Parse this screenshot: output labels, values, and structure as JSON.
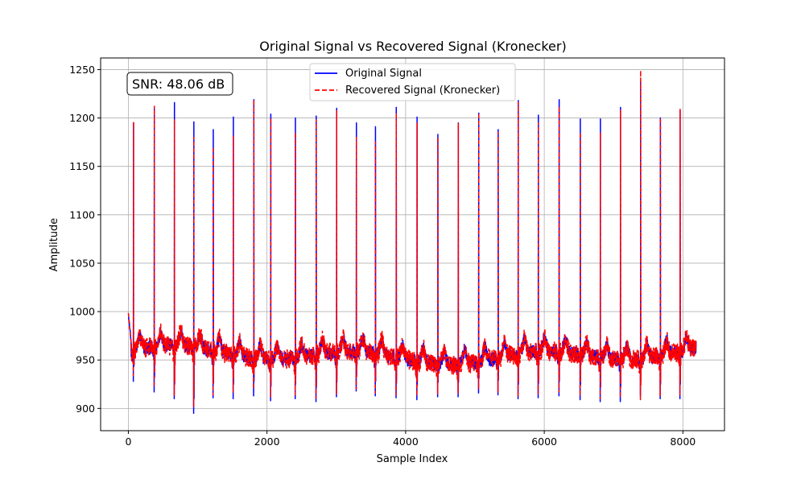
{
  "chart_data": {
    "type": "line",
    "title": "Original Signal vs Recovered Signal (Kronecker)",
    "xlabel": "Sample Index",
    "ylabel": "Amplitude",
    "xlim": [
      -400,
      8600
    ],
    "ylim": [
      877,
      1262
    ],
    "xticks": [
      0,
      2000,
      4000,
      6000,
      8000
    ],
    "yticks": [
      900,
      950,
      1000,
      1050,
      1100,
      1150,
      1200,
      1250
    ],
    "grid": true,
    "legend_position": "top-center",
    "annotation": "SNR: 48.06 dB",
    "n_samples": 8192,
    "baseline": 955,
    "series": [
      {
        "name": "Original Signal",
        "color": "#0000ff",
        "style": "solid"
      },
      {
        "name": "Recovered Signal (Kronecker)",
        "color": "#ff0000",
        "style": "dashed"
      }
    ],
    "peaks": [
      {
        "x": 75,
        "orig_max": 1195,
        "orig_min": 928,
        "rec_max": 1196,
        "rec_min": 934
      },
      {
        "x": 375,
        "orig_max": 1212,
        "orig_min": 917,
        "rec_max": 1212,
        "rec_min": 922
      },
      {
        "x": 665,
        "orig_max": 1216,
        "orig_min": 910,
        "rec_max": 1198,
        "rec_min": 913
      },
      {
        "x": 945,
        "orig_max": 1196,
        "orig_min": 895,
        "rec_max": 1180,
        "rec_min": 902
      },
      {
        "x": 1225,
        "orig_max": 1188,
        "orig_min": 911,
        "rec_max": 1170,
        "rec_min": 914
      },
      {
        "x": 1515,
        "orig_max": 1201,
        "orig_min": 910,
        "rec_max": 1182,
        "rec_min": 916
      },
      {
        "x": 1810,
        "orig_max": 1219,
        "orig_min": 913,
        "rec_max": 1219,
        "rec_min": 920
      },
      {
        "x": 2055,
        "orig_max": 1204,
        "orig_min": 908,
        "rec_max": 1200,
        "rec_min": 912
      },
      {
        "x": 2410,
        "orig_max": 1200,
        "orig_min": 910,
        "rec_max": 1185,
        "rec_min": 914
      },
      {
        "x": 2710,
        "orig_max": 1202,
        "orig_min": 907,
        "rec_max": 1198,
        "rec_min": 911
      },
      {
        "x": 3005,
        "orig_max": 1210,
        "orig_min": 912,
        "rec_max": 1208,
        "rec_min": 915
      },
      {
        "x": 3290,
        "orig_max": 1195,
        "orig_min": 918,
        "rec_max": 1180,
        "rec_min": 920
      },
      {
        "x": 3565,
        "orig_max": 1191,
        "orig_min": 913,
        "rec_max": 1175,
        "rec_min": 916
      },
      {
        "x": 3865,
        "orig_max": 1211,
        "orig_min": 911,
        "rec_max": 1205,
        "rec_min": 914
      },
      {
        "x": 4165,
        "orig_max": 1201,
        "orig_min": 909,
        "rec_max": 1195,
        "rec_min": 913
      },
      {
        "x": 4465,
        "orig_max": 1183,
        "orig_min": 912,
        "rec_max": 1180,
        "rec_min": 915
      },
      {
        "x": 4760,
        "orig_max": 1195,
        "orig_min": 912,
        "rec_max": 1195,
        "rec_min": 916
      },
      {
        "x": 5055,
        "orig_max": 1205,
        "orig_min": 916,
        "rec_max": 1205,
        "rec_min": 920
      },
      {
        "x": 5335,
        "orig_max": 1188,
        "orig_min": 914,
        "rec_max": 1185,
        "rec_min": 917
      },
      {
        "x": 5625,
        "orig_max": 1218,
        "orig_min": 910,
        "rec_max": 1216,
        "rec_min": 912
      },
      {
        "x": 5915,
        "orig_max": 1203,
        "orig_min": 911,
        "rec_max": 1195,
        "rec_min": 915
      },
      {
        "x": 6215,
        "orig_max": 1219,
        "orig_min": 913,
        "rec_max": 1212,
        "rec_min": 917
      },
      {
        "x": 6520,
        "orig_max": 1199,
        "orig_min": 909,
        "rec_max": 1185,
        "rec_min": 913
      },
      {
        "x": 6810,
        "orig_max": 1199,
        "orig_min": 907,
        "rec_max": 1185,
        "rec_min": 910
      },
      {
        "x": 7100,
        "orig_max": 1211,
        "orig_min": 907,
        "rec_max": 1208,
        "rec_min": 911
      },
      {
        "x": 7390,
        "orig_max": 1238,
        "orig_min": 913,
        "rec_max": 1249,
        "rec_min": 909
      },
      {
        "x": 7675,
        "orig_max": 1200,
        "orig_min": 910,
        "rec_max": 1200,
        "rec_min": 913
      },
      {
        "x": 7960,
        "orig_max": 1208,
        "orig_min": 910,
        "rec_max": 1209,
        "rec_min": 914
      }
    ]
  }
}
